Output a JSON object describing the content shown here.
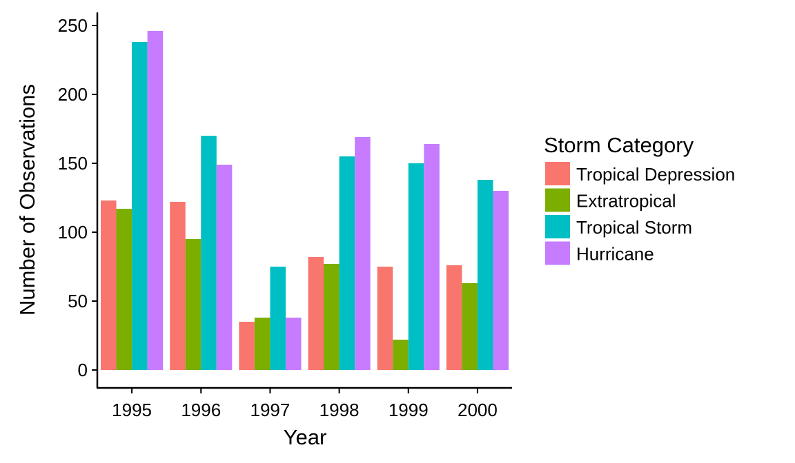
{
  "chart_data": {
    "type": "bar",
    "xlabel": "Year",
    "ylabel": "Number of Observations",
    "categories": [
      "1995",
      "1996",
      "1997",
      "1998",
      "1999",
      "2000"
    ],
    "ylim": [
      0,
      250
    ],
    "yticks": [
      0,
      50,
      100,
      150,
      200,
      250
    ],
    "grid": false,
    "legend": {
      "title": "Storm Category",
      "placement": "right"
    },
    "series": [
      {
        "name": "Tropical Depression",
        "color": "#F8766D",
        "values": [
          123,
          122,
          35,
          82,
          75,
          76
        ]
      },
      {
        "name": "Extratropical",
        "color": "#7CAE00",
        "values": [
          117,
          95,
          38,
          77,
          22,
          63
        ]
      },
      {
        "name": "Tropical Storm",
        "color": "#00BFC4",
        "values": [
          238,
          170,
          75,
          155,
          150,
          138
        ]
      },
      {
        "name": "Hurricane",
        "color": "#C77CFF",
        "values": [
          246,
          149,
          38,
          169,
          164,
          130
        ]
      }
    ]
  }
}
